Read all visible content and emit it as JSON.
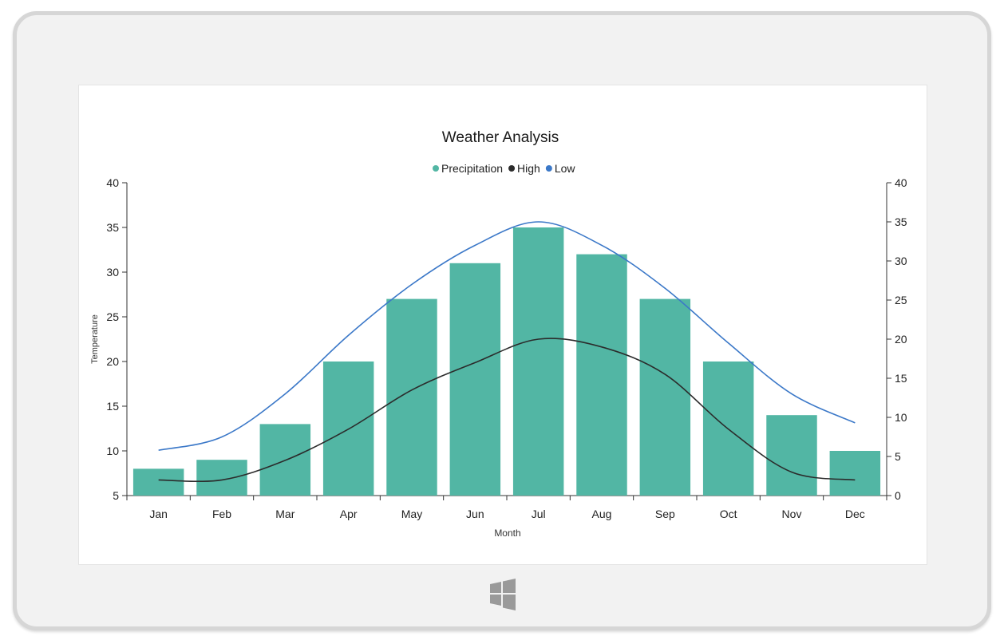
{
  "colors": {
    "precipitation": "#52b6a4",
    "high": "#2b2b2b",
    "low": "#3b78c8",
    "axis": "#333333",
    "frame": "#d6d6d6",
    "logo": "#9a9a9a"
  },
  "windows_logo_icon": "windows-logo-icon",
  "chart_data": {
    "type": "bar",
    "title": "Weather Analysis",
    "xlabel": "Month",
    "ylabel": "Temperature",
    "categories": [
      "Jan",
      "Feb",
      "Mar",
      "Apr",
      "May",
      "Jun",
      "Jul",
      "Aug",
      "Sep",
      "Oct",
      "Nov",
      "Dec"
    ],
    "legend_position": "top-center",
    "grid": false,
    "y_left": {
      "range": [
        5,
        40
      ],
      "ticks": [
        "5",
        "10",
        "15",
        "20",
        "25",
        "30",
        "35",
        "40"
      ]
    },
    "y_right": {
      "range": [
        0,
        40
      ],
      "ticks": [
        "0",
        "5",
        "10",
        "15",
        "20",
        "25",
        "30",
        "35",
        "40"
      ]
    },
    "series": [
      {
        "name": "Precipitation",
        "type": "bar",
        "axis": "left",
        "values": [
          8,
          9,
          13,
          20,
          27,
          31,
          35,
          32,
          27,
          20,
          14,
          10
        ]
      },
      {
        "name": "High",
        "type": "spline",
        "axis": "right",
        "values": [
          2,
          2,
          4.5,
          8.5,
          13.5,
          17,
          20,
          19,
          15.5,
          8.5,
          3,
          2
        ]
      },
      {
        "name": "Low",
        "type": "spline",
        "axis": "right",
        "values": [
          5.8,
          7.5,
          13,
          20.5,
          27,
          32,
          35,
          32,
          26.5,
          19.5,
          13,
          9.3
        ]
      }
    ]
  }
}
